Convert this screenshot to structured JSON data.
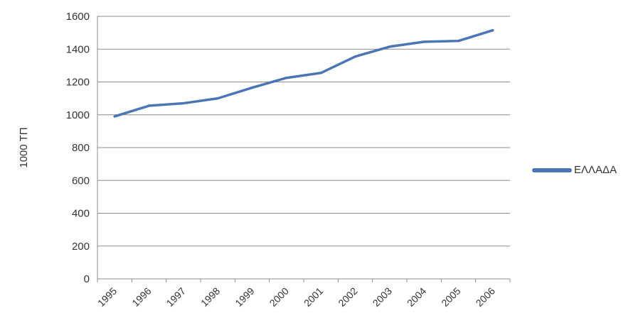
{
  "chart_data": {
    "type": "line",
    "title": "",
    "xlabel": "",
    "ylabel": "1000 ΤΠ",
    "ylim": [
      0,
      1600
    ],
    "yticks": [
      0,
      200,
      400,
      600,
      800,
      1000,
      1200,
      1400,
      1600
    ],
    "grid": true,
    "legend_position": "right",
    "categories": [
      "1995",
      "1996",
      "1997",
      "1998",
      "1999",
      "2000",
      "2001",
      "2002",
      "2003",
      "2004",
      "2005",
      "2006"
    ],
    "series": [
      {
        "name": "ΕΛΛΑΔΑ",
        "color": "#4a76b6",
        "values": [
          990,
          1055,
          1070,
          1100,
          1165,
          1225,
          1255,
          1355,
          1415,
          1445,
          1450,
          1515
        ]
      }
    ]
  }
}
